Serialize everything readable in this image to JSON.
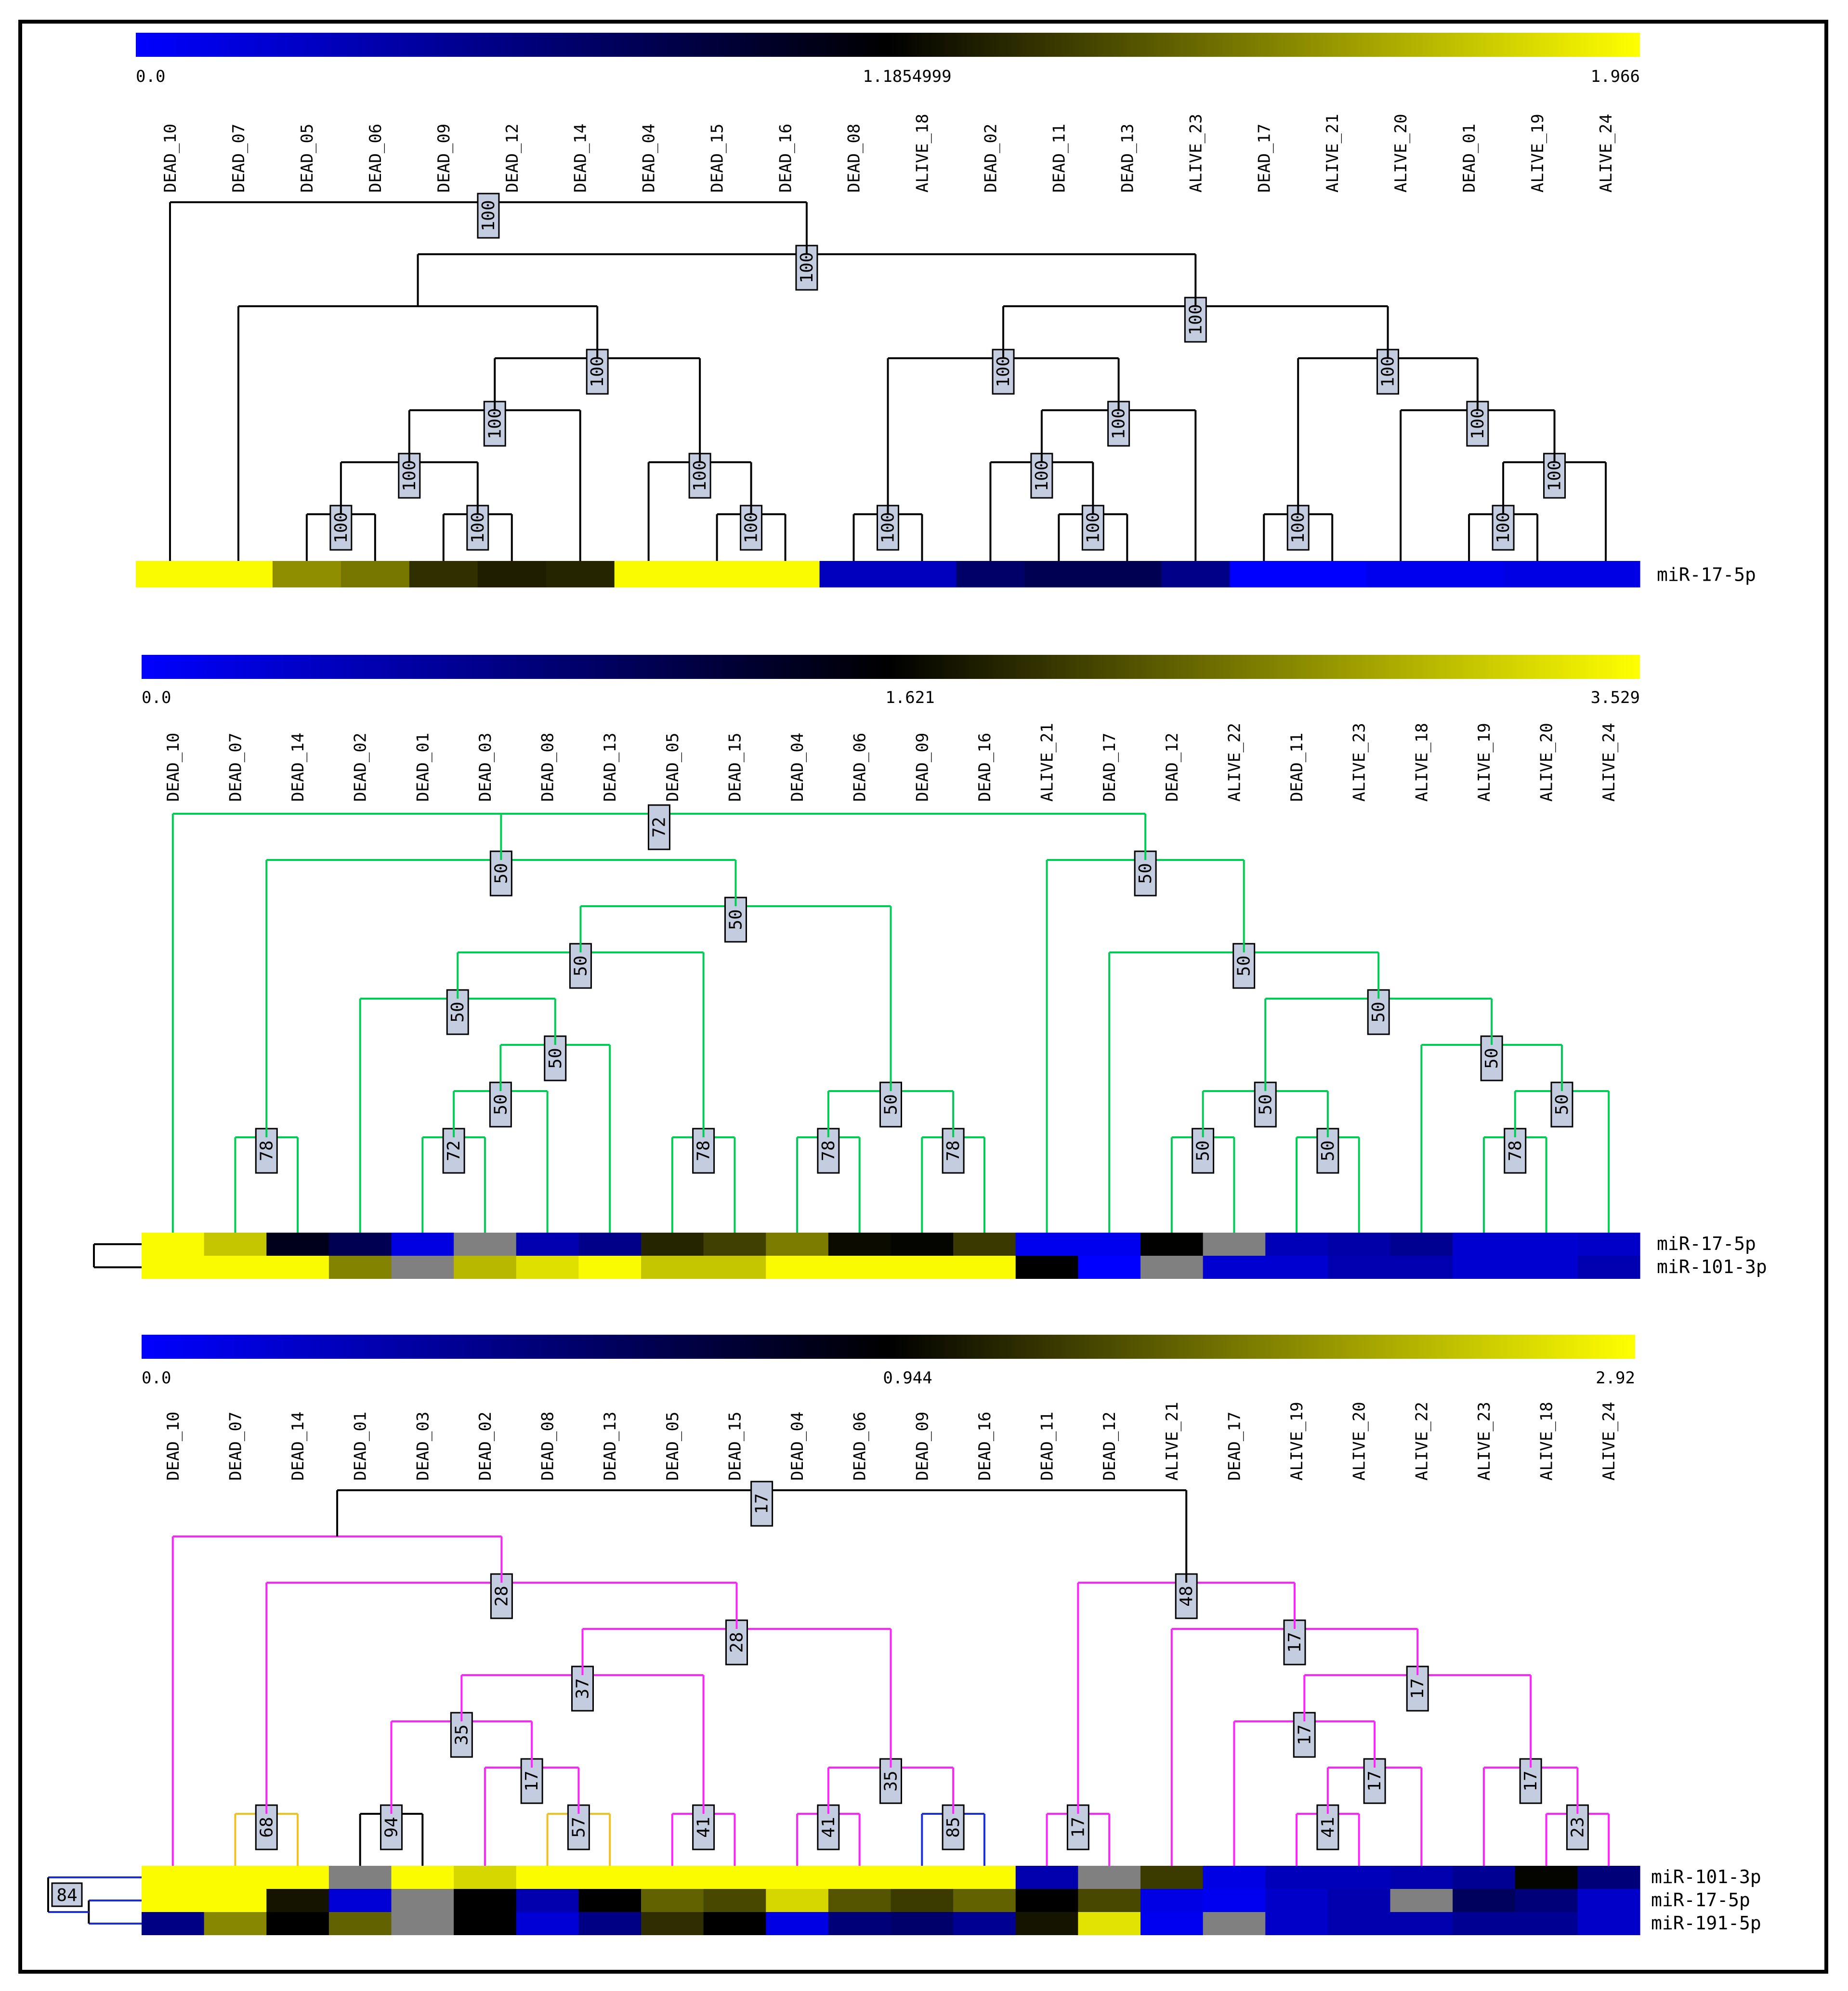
{
  "colors": {
    "low": "#0000ff",
    "mid": "#000000",
    "high": "#ffff00",
    "missing": "#808080",
    "branch_default": "#000000",
    "label_fill": "#c4cde0",
    "branch_palette": {
      "black": "#000000",
      "green": "#00cc55",
      "orange": "#f0c020",
      "magenta": "#ff22ff",
      "blue": "#1a2edd"
    }
  },
  "panels": [
    {
      "id": "panel-1",
      "scale": {
        "min_label": "0.0",
        "mid_label": "1.1854999",
        "max_label": "1.966",
        "min": 0.0,
        "mid": 1.1854999,
        "max": 1.966
      },
      "samples": [
        "DEAD_10",
        "DEAD_07",
        "DEAD_05",
        "DEAD_06",
        "DEAD_09",
        "DEAD_12",
        "DEAD_14",
        "DEAD_04",
        "DEAD_15",
        "DEAD_16",
        "DEAD_08",
        "ALIVE_18",
        "DEAD_02",
        "DEAD_11",
        "DEAD_13",
        "ALIVE_23",
        "DEAD_17",
        "ALIVE_21",
        "ALIVE_20",
        "DEAD_01",
        "ALIVE_19",
        "ALIVE_24"
      ],
      "rows": [
        {
          "label": "miR-17-5p",
          "values": [
            1.95,
            1.95,
            1.62,
            1.55,
            1.33,
            1.28,
            1.3,
            1.95,
            1.95,
            1.95,
            0.3,
            0.3,
            0.7,
            0.8,
            0.8,
            0.55,
            0.0,
            0.0,
            0.08,
            0.08,
            0.12,
            0.12
          ]
        }
      ],
      "tree": {
        "label": "100",
        "children": [
          0,
          {
            "label": "100",
            "children": [
              {
                "children": [
                  1,
                  {
                    "label": "100",
                    "children": [
                      {
                        "label": "100",
                        "children": [
                          {
                            "label": "100",
                            "children": [
                              {
                                "label": "100",
                                "children": [
                                  2,
                                  3
                                ]
                              },
                              {
                                "label": "100",
                                "children": [
                                  4,
                                  5
                                ]
                              }
                            ]
                          },
                          6
                        ]
                      },
                      {
                        "label": "100",
                        "children": [
                          7,
                          {
                            "label": "100",
                            "children": [
                              8,
                              9
                            ]
                          }
                        ]
                      }
                    ]
                  }
                ]
              },
              {
                "label": "100",
                "children": [
                  {
                    "label": "100",
                    "children": [
                      {
                        "label": "100",
                        "children": [
                          10,
                          11
                        ]
                      },
                      {
                        "label": "100",
                        "children": [
                          {
                            "label": "100",
                            "children": [
                              12,
                              {
                                "label": "100",
                                "children": [
                                  13,
                                  14
                                ]
                              }
                            ]
                          },
                          15
                        ]
                      }
                    ]
                  },
                  {
                    "label": "100",
                    "children": [
                      {
                        "label": "100",
                        "children": [
                          16,
                          17
                        ]
                      },
                      {
                        "label": "100",
                        "children": [
                          18,
                          {
                            "label": "100",
                            "children": [
                              {
                                "label": "100",
                                "children": [
                                  19,
                                  20
                                ]
                              },
                              21
                            ]
                          }
                        ]
                      }
                    ]
                  }
                ]
              }
            ]
          }
        ]
      },
      "row_tree": null
    },
    {
      "id": "panel-2",
      "scale": {
        "min_label": "0.0",
        "mid_label": "1.621",
        "max_label": "3.529",
        "min": 0.0,
        "mid": 1.621,
        "max": 3.529
      },
      "samples": [
        "DEAD_10",
        "DEAD_07",
        "DEAD_14",
        "DEAD_02",
        "DEAD_01",
        "DEAD_03",
        "DEAD_08",
        "DEAD_13",
        "DEAD_05",
        "DEAD_15",
        "DEAD_04",
        "DEAD_06",
        "DEAD_09",
        "DEAD_16",
        "ALIVE_21",
        "DEAD_17",
        "DEAD_12",
        "ALIVE_22",
        "DEAD_11",
        "ALIVE_23",
        "ALIVE_18",
        "ALIVE_19",
        "ALIVE_20",
        "ALIVE_24"
      ],
      "rows": [
        {
          "label": "miR-17-5p",
          "values": [
            3.5,
            3.1,
            1.45,
            1.1,
            0.2,
            null,
            0.5,
            0.75,
            1.9,
            2.1,
            2.55,
            1.7,
            1.65,
            2.05,
            0.1,
            0.1,
            1.63,
            null,
            0.45,
            0.55,
            0.7,
            0.3,
            0.3,
            0.35
          ]
        },
        {
          "label": "miR-101-3p",
          "values": [
            3.5,
            3.5,
            3.5,
            2.6,
            null,
            3.0,
            3.3,
            3.5,
            3.1,
            3.1,
            3.5,
            3.5,
            3.5,
            3.5,
            1.62,
            0.0,
            null,
            0.3,
            0.3,
            0.5,
            0.5,
            0.3,
            0.3,
            0.5
          ]
        }
      ],
      "tree": {
        "label": "72",
        "color": "green",
        "children": [
          0,
          {
            "label": "50",
            "children": [
              {
                "children": [
                  {
                    "label": "78",
                    "color": "green",
                    "children": [
                      1,
                      2
                    ]
                  }
                ]
              },
              {
                "label": "50",
                "children": [
                  {
                    "label": "50",
                    "children": [
                      {
                        "label": "50",
                        "children": [
                          3,
                          {
                            "label": "50",
                            "children": [
                              {
                                "label": "50",
                                "children": [
                                  {
                                    "label": "72",
                                    "color": "green",
                                    "children": [
                                      4,
                                      5
                                    ]
                                  },
                                  6
                                ]
                              },
                              7
                            ]
                          }
                        ]
                      },
                      {
                        "label": "78",
                        "color": "green",
                        "children": [
                          8,
                          9
                        ]
                      }
                    ]
                  },
                  {
                    "label": "50",
                    "children": [
                      {
                        "label": "78",
                        "color": "green",
                        "children": [
                          10,
                          11
                        ]
                      },
                      {
                        "label": "78",
                        "color": "green",
                        "children": [
                          12,
                          13
                        ]
                      }
                    ]
                  }
                ]
              }
            ]
          },
          {
            "label": "50",
            "children": [
              14,
              {
                "label": "50",
                "children": [
                  {
                    "label": "50",
                    "children": [
                      15,
                      {
                        "label": "50",
                        "children": [
                          {
                            "label": "50",
                            "children": [
                              {
                                "label": "50",
                                "children": [
                                  16,
                                  17
                                ]
                              },
                              {
                                "label": "50",
                                "children": [
                                  18,
                                  19
                                ]
                              }
                            ]
                          },
                          {
                            "label": "50",
                            "children": [
                              20,
                              {
                                "label": "50",
                                "children": [
                                  {
                                    "label": "78",
                                    "color": "green",
                                    "children": [
                                      21,
                                      22
                                    ]
                                  },
                                  23
                                ]
                              }
                            ]
                          }
                        ]
                      }
                    ]
                  }
                ]
              }
            ]
          }
        ]
      },
      "row_tree": {
        "label": "",
        "children": [
          0,
          1
        ]
      }
    },
    {
      "id": "panel-3",
      "scale": {
        "min_label": "0.0",
        "mid_label": "0.944",
        "max_label": "2.92",
        "min": 0.0,
        "mid": 0.944,
        "max": 2.92
      },
      "samples": [
        "DEAD_10",
        "DEAD_07",
        "DEAD_14",
        "DEAD_01",
        "DEAD_03",
        "DEAD_02",
        "DEAD_08",
        "DEAD_13",
        "DEAD_05",
        "DEAD_15",
        "DEAD_04",
        "DEAD_06",
        "DEAD_09",
        "DEAD_16",
        "DEAD_11",
        "DEAD_12",
        "ALIVE_21",
        "DEAD_17",
        "ALIVE_19",
        "ALIVE_20",
        "ALIVE_22",
        "ALIVE_23",
        "ALIVE_18",
        "ALIVE_24"
      ],
      "rows": [
        {
          "label": "miR-101-3p",
          "values": [
            2.9,
            2.9,
            2.9,
            null,
            2.9,
            2.6,
            2.9,
            2.9,
            2.9,
            2.9,
            2.9,
            2.9,
            2.9,
            2.9,
            0.3,
            null,
            1.4,
            0.1,
            0.25,
            0.25,
            0.3,
            0.4,
            0.98,
            0.5
          ]
        },
        {
          "label": "miR-17-5p",
          "values": [
            2.9,
            2.9,
            1.1,
            0.15,
            null,
            0.944,
            0.3,
            0.944,
            1.7,
            1.5,
            2.6,
            1.6,
            1.4,
            1.7,
            0.944,
            1.5,
            0.1,
            0.05,
            0.2,
            0.3,
            null,
            0.6,
            0.5,
            0.2
          ]
        },
        {
          "label": "miR-191-5p",
          "values": [
            0.45,
            2.0,
            0.944,
            1.7,
            null,
            0.944,
            0.15,
            0.45,
            1.3,
            0.944,
            0.1,
            0.5,
            0.55,
            0.4,
            1.1,
            2.7,
            0.05,
            null,
            0.2,
            0.3,
            0.3,
            0.4,
            0.4,
            0.2
          ]
        }
      ],
      "tree": {
        "label": "17",
        "children": [
          {
            "children": [
              0,
              {
                "label": "28",
                "color": "magenta",
                "children": [
                  {
                    "children": [
                      {
                        "label": "68",
                        "color": "orange",
                        "children": [
                          1,
                          2
                        ]
                      }
                    ]
                  },
                  {
                    "label": "28",
                    "color": "magenta",
                    "children": [
                      {
                        "label": "37",
                        "color": "magenta",
                        "children": [
                          {
                            "label": "35",
                            "color": "magenta",
                            "children": [
                              {
                                "label": "94",
                                "color": "black",
                                "children": [
                                  3,
                                  4
                                ]
                              },
                              {
                                "label": "17",
                                "color": "magenta",
                                "children": [
                                  5,
                                  {
                                    "label": "57",
                                    "color": "orange",
                                    "children": [
                                      6,
                                      7
                                    ]
                                  }
                                ]
                              }
                            ]
                          },
                          {
                            "label": "41",
                            "color": "magenta",
                            "children": [
                              8,
                              9
                            ]
                          }
                        ]
                      },
                      {
                        "label": "35",
                        "color": "magenta",
                        "children": [
                          {
                            "label": "41",
                            "color": "magenta",
                            "children": [
                              10,
                              11
                            ]
                          },
                          {
                            "label": "85",
                            "color": "blue",
                            "children": [
                              12,
                              13
                            ]
                          }
                        ]
                      }
                    ]
                  }
                ]
              }
            ],
            "color": "magenta"
          },
          {
            "label": "48",
            "color": "magenta",
            "children": [
              {
                "children": [
                  {
                    "label": "17",
                    "color": "magenta",
                    "children": [
                      14,
                      15
                    ]
                  }
                ]
              },
              {
                "label": "17",
                "color": "magenta",
                "children": [
                  16,
                  {
                    "label": "17",
                    "color": "magenta",
                    "children": [
                      {
                        "label": "17",
                        "color": "magenta",
                        "children": [
                          17,
                          {
                            "label": "17",
                            "color": "magenta",
                            "children": [
                              {
                                "label": "41",
                                "color": "magenta",
                                "children": [
                                  18,
                                  19
                                ]
                              },
                              20
                            ]
                          }
                        ]
                      },
                      {
                        "label": "17",
                        "color": "magenta",
                        "children": [
                          21,
                          {
                            "label": "23",
                            "color": "magenta",
                            "children": [
                              22,
                              23
                            ]
                          }
                        ]
                      }
                    ]
                  }
                ]
              }
            ]
          }
        ]
      },
      "row_tree": {
        "label": "84",
        "color": "blue",
        "children": [
          0,
          {
            "children": [
              1,
              2
            ]
          }
        ]
      }
    }
  ]
}
